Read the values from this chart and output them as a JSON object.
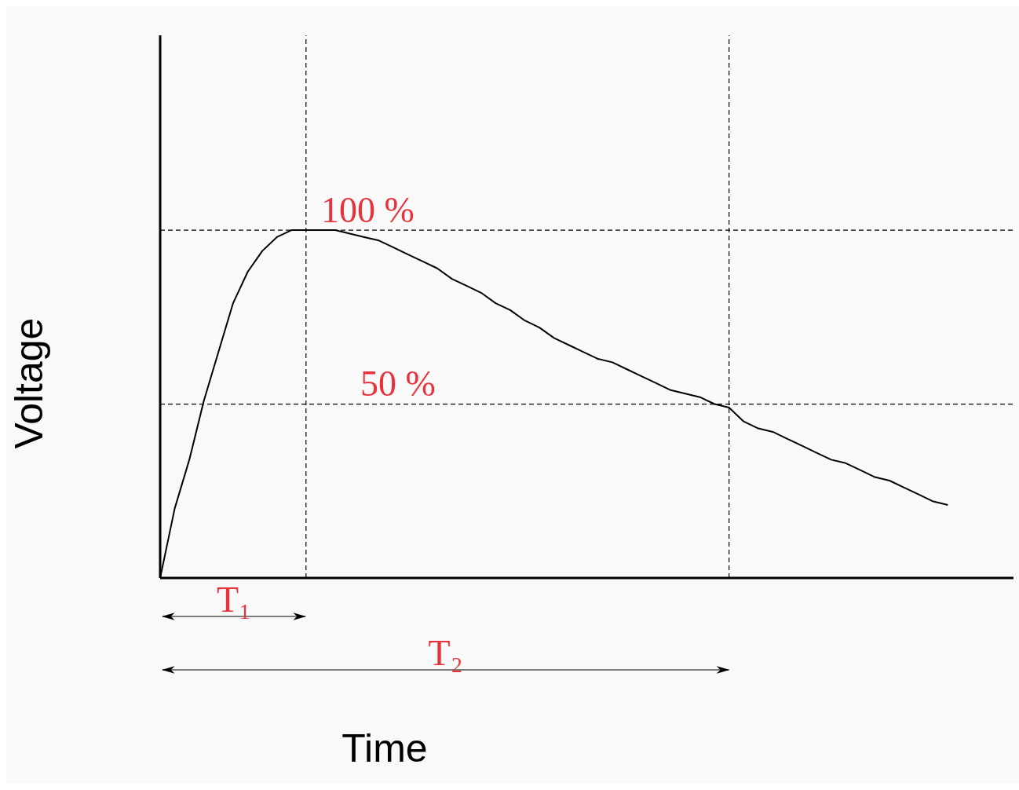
{
  "chart_data": {
    "type": "line",
    "xlabel": "Time",
    "ylabel": "Voltage",
    "ylim": [
      0,
      156
    ],
    "categories": [
      null,
      null,
      null,
      null,
      null,
      null,
      null,
      null,
      null,
      null,
      null,
      null,
      null,
      null,
      null,
      null,
      null,
      null,
      null,
      null,
      null,
      null,
      null,
      null,
      null,
      null,
      null,
      null,
      null,
      null,
      null,
      null,
      null,
      null,
      null,
      null,
      null,
      null,
      null,
      null,
      null,
      null,
      null,
      null,
      null,
      null,
      null,
      null,
      null,
      null,
      null,
      null,
      null,
      null,
      null,
      null,
      null,
      null,
      null
    ],
    "series": [
      {
        "color": "#000000",
        "values": [
          0,
          20,
          34,
          51,
          65,
          79,
          88,
          94,
          98,
          100,
          100,
          100,
          100,
          99,
          98,
          97,
          95,
          93,
          91,
          89,
          86,
          84,
          82,
          79,
          77,
          74,
          72,
          69,
          67,
          65,
          63,
          62,
          60,
          58,
          56,
          54,
          53,
          52,
          50,
          49,
          45,
          43,
          42,
          40,
          38,
          36,
          34,
          33,
          31,
          29,
          28,
          26,
          24,
          22,
          21,
          null,
          null,
          null,
          null
        ]
      }
    ],
    "ref_lines": [
      {
        "axis": "y",
        "value": 100,
        "label": "100 %",
        "line_style": "dashed",
        "color": "#000000"
      },
      {
        "axis": "y",
        "value": 50,
        "label": "50 %",
        "line_style": "dashed",
        "color": "#000000"
      }
    ],
    "annotations": [
      "T₁",
      "T₂"
    ],
    "grid": false,
    "legend": false,
    "marker": "none",
    "line_style": "solid"
  }
}
